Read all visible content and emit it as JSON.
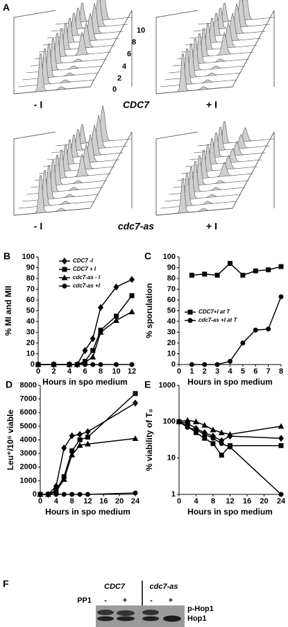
{
  "panel_a": {
    "label": "A",
    "ticks": [
      "10",
      "8",
      "6",
      "4",
      "2",
      "0"
    ],
    "gene_top": "CDC7",
    "gene_bottom": "cdc7-as",
    "conditions": [
      "- I",
      "+ I",
      "- I",
      "+ I"
    ]
  },
  "chart_data": [
    {
      "type": "line",
      "label": "B",
      "x": [
        0,
        2,
        4,
        5,
        6,
        7,
        8,
        10,
        12
      ],
      "xlim": [
        0,
        12
      ],
      "xticks": [
        0,
        2,
        4,
        6,
        8,
        10,
        12
      ],
      "ylim": [
        0,
        100
      ],
      "yticks": [
        0,
        10,
        20,
        30,
        40,
        50,
        60,
        70,
        80,
        90,
        100
      ],
      "x_label": "Hours in spo medium",
      "y_label": "% MI and MII",
      "legend": "upper left",
      "series": [
        {
          "name": "CDC7 -I",
          "color": "#000000",
          "marker": "diamond",
          "values": [
            0,
            0,
            0,
            0,
            13,
            24,
            53,
            72,
            79
          ]
        },
        {
          "name": "CDC7 + I",
          "color": "#000000",
          "marker": "square",
          "values": [
            0,
            0,
            0,
            0,
            3,
            13,
            32,
            45,
            64
          ]
        },
        {
          "name": "cdc7-as - I",
          "color": "#000000",
          "marker": "triangle",
          "values": [
            0,
            0,
            0,
            0,
            2,
            7,
            30,
            41,
            49
          ]
        },
        {
          "name": "cdc7-as +I",
          "color": "#000000",
          "marker": "circle",
          "values": [
            0,
            0,
            0,
            0,
            0,
            0,
            0,
            0,
            0
          ]
        }
      ]
    },
    {
      "type": "line",
      "label": "C",
      "x": [
        1,
        2,
        3,
        4,
        5,
        6,
        7,
        8
      ],
      "xlim": [
        0,
        8
      ],
      "xticks": [
        0,
        1,
        2,
        3,
        4,
        5,
        6,
        7,
        8
      ],
      "ylim": [
        0,
        100
      ],
      "yticks": [
        0,
        10,
        20,
        30,
        40,
        50,
        60,
        70,
        80,
        90,
        100
      ],
      "x_label": "Hours in spo medium",
      "y_label": "% sporulation",
      "legend": "center left",
      "series": [
        {
          "name": "CDC7+I at T",
          "color": "#000000",
          "marker": "square",
          "values": [
            83,
            84,
            83,
            94,
            83,
            87,
            88,
            91
          ]
        },
        {
          "name": "cdc7-as +I at T",
          "color": "#000000",
          "marker": "circle",
          "values": [
            0,
            0,
            0,
            3,
            20,
            32,
            33,
            63
          ]
        }
      ]
    },
    {
      "type": "line",
      "label": "D",
      "x": [
        0,
        2,
        4,
        6,
        8,
        10,
        12,
        24
      ],
      "xlim": [
        0,
        24
      ],
      "xticks": [
        0,
        4,
        8,
        12,
        16,
        20,
        24
      ],
      "ylim": [
        0,
        8000
      ],
      "yticks": [
        0,
        1000,
        2000,
        3000,
        4000,
        5000,
        6000,
        7000,
        8000
      ],
      "x_label": "Hours in spo medium",
      "y_label": "Leu⁺/10⁵ viable",
      "series": [
        {
          "color": "#000000",
          "marker": "diamond",
          "values": [
            0,
            0,
            600,
            3400,
            4300,
            4400,
            4600,
            6700
          ]
        },
        {
          "color": "#000000",
          "marker": "square",
          "values": [
            0,
            0,
            300,
            1300,
            3200,
            4000,
            4200,
            7400
          ]
        },
        {
          "color": "#000000",
          "marker": "triangle",
          "values": [
            0,
            0,
            200,
            1100,
            2900,
            3600,
            3700,
            4100
          ]
        },
        {
          "color": "#000000",
          "marker": "circle",
          "values": [
            0,
            0,
            0,
            0,
            0,
            0,
            0,
            100
          ]
        }
      ]
    },
    {
      "type": "line",
      "label": "E",
      "x": [
        0,
        2,
        4,
        6,
        8,
        10,
        12,
        24
      ],
      "xlim": [
        0,
        24
      ],
      "xticks": [
        0,
        4,
        8,
        12,
        16,
        20,
        24
      ],
      "ylim": [
        1,
        1000
      ],
      "yticks": [
        1,
        10,
        100,
        1000
      ],
      "log_y": true,
      "x_label": "Hours in spo medium",
      "y_label": "% viability of T₀",
      "series": [
        {
          "color": "#000000",
          "marker": "triangle",
          "values": [
            100,
            110,
            100,
            80,
            60,
            50,
            45,
            75
          ]
        },
        {
          "color": "#000000",
          "marker": "diamond",
          "values": [
            100,
            90,
            65,
            50,
            40,
            30,
            40,
            35
          ]
        },
        {
          "color": "#000000",
          "marker": "square",
          "values": [
            100,
            75,
            50,
            35,
            25,
            12,
            22,
            22
          ]
        },
        {
          "color": "#000000",
          "marker": "circle",
          "values": [
            100,
            70,
            60,
            45,
            35,
            25,
            20,
            1
          ]
        }
      ]
    }
  ],
  "panel_f": {
    "label": "F",
    "strains": [
      "CDC7",
      "cdc7-as"
    ],
    "treatment": "PP1",
    "lanes": [
      "-",
      "+",
      "-",
      "+"
    ],
    "bands": [
      "p-Hop1",
      "Hop1"
    ]
  }
}
